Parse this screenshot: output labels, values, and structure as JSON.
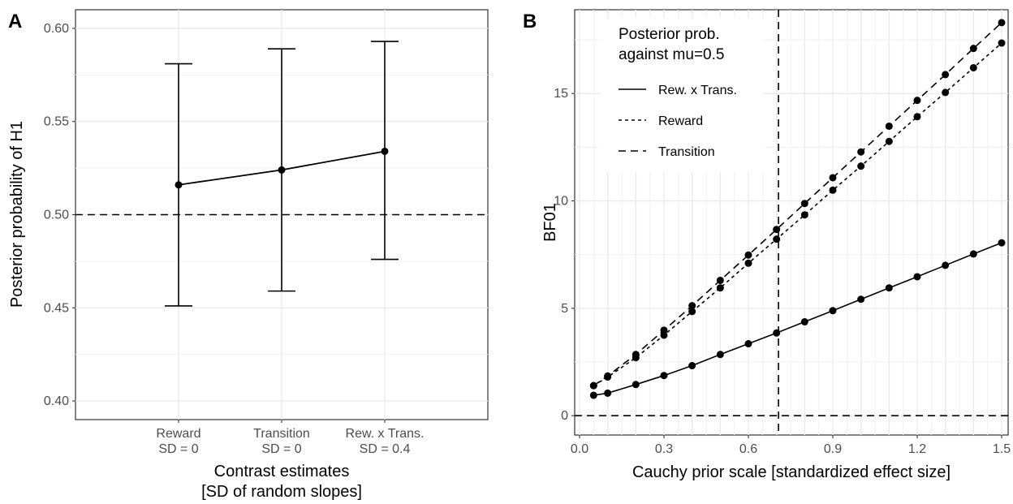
{
  "chart_data": [
    {
      "panel": "A",
      "type": "line",
      "xlabel": [
        "Contrast estimates",
        "[SD of random slopes]"
      ],
      "ylabel": "Posterior probability of H1",
      "ylim": [
        0.39,
        0.61
      ],
      "yticks": [
        0.4,
        0.45,
        0.5,
        0.55,
        0.6
      ],
      "ytick_labels": [
        "0.40",
        "0.45",
        "0.50",
        "0.55",
        "0.60"
      ],
      "categories": [
        [
          "Reward",
          "SD = 0"
        ],
        [
          "Transition",
          "SD = 0"
        ],
        [
          "Rew. x Trans.",
          "SD = 0.4"
        ]
      ],
      "values": [
        0.516,
        0.524,
        0.534
      ],
      "error_low": [
        0.451,
        0.459,
        0.476
      ],
      "error_high": [
        0.581,
        0.589,
        0.593
      ],
      "hline": 0.5,
      "grid": true
    },
    {
      "panel": "B",
      "type": "line",
      "xlabel": "Cauchy prior scale [standardized effect size]",
      "ylabel": "BF01",
      "xlim": [
        0,
        1.5
      ],
      "ylim": [
        -0.9,
        18.9
      ],
      "xticks": [
        0.0,
        0.3,
        0.6,
        0.9,
        1.2,
        1.5
      ],
      "xtick_labels": [
        "0.0",
        "0.3",
        "0.6",
        "0.9",
        "1.2",
        "1.5"
      ],
      "yticks": [
        0,
        5,
        10,
        15
      ],
      "ytick_labels": [
        "0",
        "5",
        "10",
        "15"
      ],
      "x": [
        0.05,
        0.1,
        0.2,
        0.3,
        0.4,
        0.5,
        0.6,
        0.7,
        0.8,
        0.9,
        1.0,
        1.1,
        1.2,
        1.3,
        1.4,
        1.5
      ],
      "series": [
        {
          "name": "Rew. x Trans.",
          "dash": "solid",
          "values": [
            0.95,
            1.05,
            1.45,
            1.87,
            2.33,
            2.85,
            3.35,
            3.85,
            4.37,
            4.89,
            5.42,
            5.95,
            6.47,
            7.0,
            7.53,
            8.05
          ]
        },
        {
          "name": "Reward",
          "dash": "dotted",
          "values": [
            1.4,
            1.8,
            2.7,
            3.75,
            4.85,
            5.95,
            7.1,
            8.22,
            9.35,
            10.5,
            11.62,
            12.77,
            13.92,
            15.05,
            16.2,
            17.35
          ]
        },
        {
          "name": "Transition",
          "dash": "dashed",
          "values": [
            1.4,
            1.85,
            2.85,
            3.98,
            5.12,
            6.3,
            7.48,
            8.67,
            9.88,
            11.08,
            12.28,
            13.48,
            14.68,
            15.88,
            17.1,
            18.3
          ]
        }
      ],
      "vline": 0.707,
      "hline": 0,
      "legend_title": [
        "Posterior prob.",
        "against mu=0.5"
      ],
      "legend_position": "top-left",
      "grid": true
    }
  ],
  "panel_tags": [
    "A",
    "B"
  ]
}
